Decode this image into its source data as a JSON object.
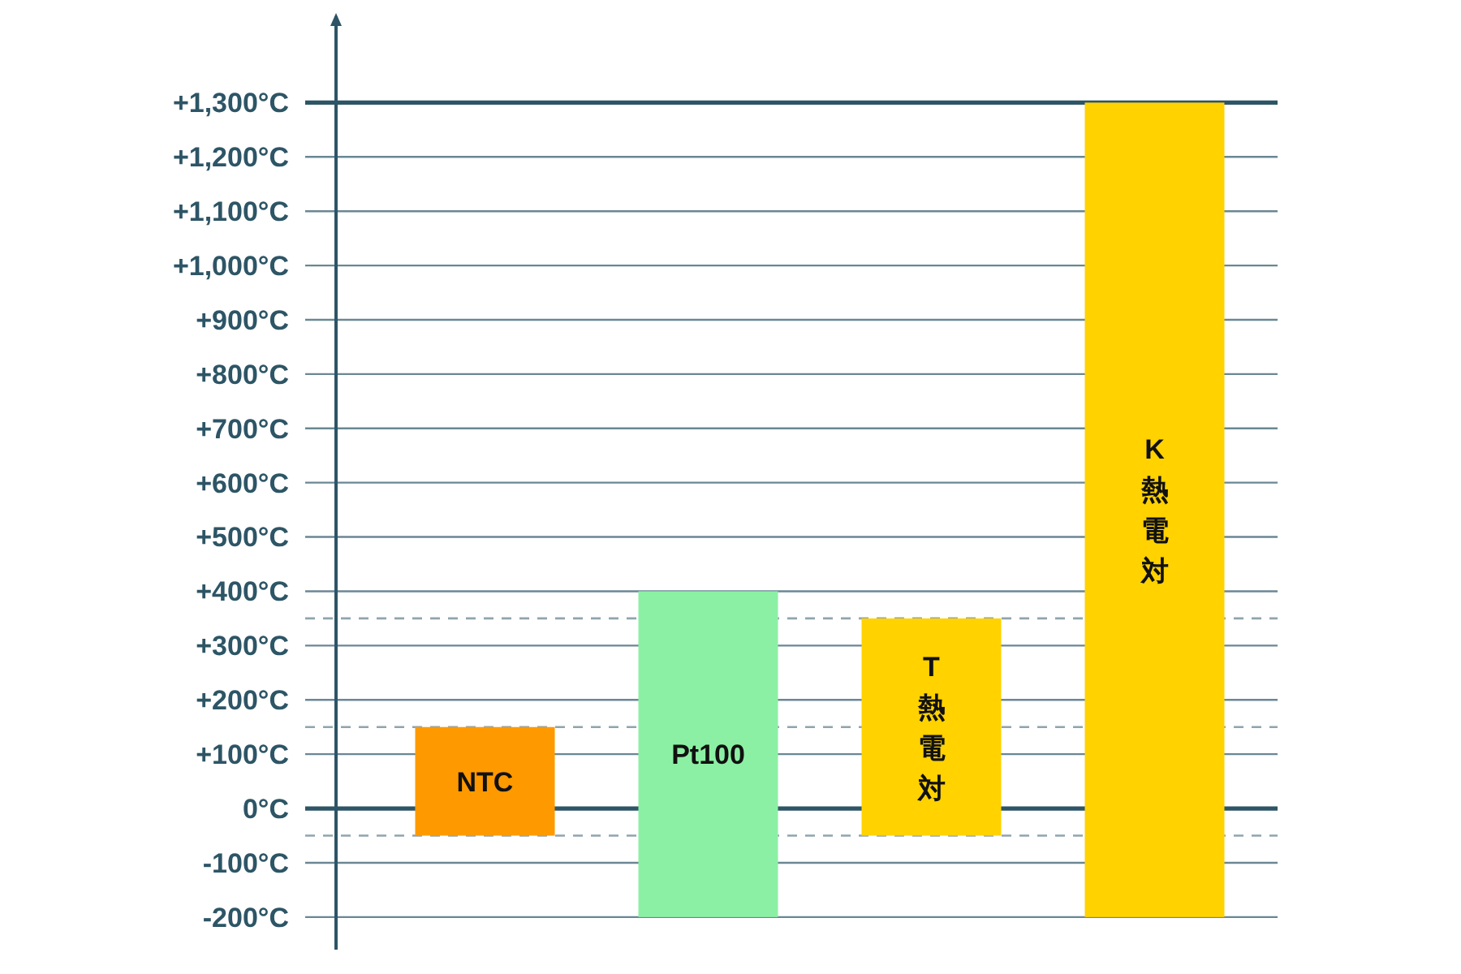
{
  "chart_data": {
    "type": "bar",
    "categories": [
      "NTC",
      "Pt100",
      "T熱電対",
      "K熱電対"
    ],
    "base": [
      -50,
      -200,
      -50,
      -200
    ],
    "values": [
      200,
      600,
      400,
      1500
    ],
    "colors": [
      "#ff9900",
      "#8cf0a4",
      "#ffd200",
      "#ffd200"
    ],
    "ylim": [
      -260,
      1465
    ],
    "yticks": [
      {
        "value": -200,
        "label": "-200°C"
      },
      {
        "value": -100,
        "label": "-100°C"
      },
      {
        "value": 0,
        "label": "0°C"
      },
      {
        "value": 100,
        "label": "+100°C"
      },
      {
        "value": 200,
        "label": "+200°C"
      },
      {
        "value": 300,
        "label": "+300°C"
      },
      {
        "value": 400,
        "label": "+400°C"
      },
      {
        "value": 500,
        "label": "+500°C"
      },
      {
        "value": 600,
        "label": "+600°C"
      },
      {
        "value": 700,
        "label": "+700°C"
      },
      {
        "value": 800,
        "label": "+800°C"
      },
      {
        "value": 900,
        "label": "+900°C"
      },
      {
        "value": 1000,
        "label": "+1,000°C"
      },
      {
        "value": 1100,
        "label": "+1,100°C"
      },
      {
        "value": 1200,
        "label": "+1,200°C"
      },
      {
        "value": 1300,
        "label": "+1,300°C"
      }
    ],
    "grid": "y",
    "ref_lines": [
      {
        "axis": "y",
        "value": 350,
        "color": "#90a4ae",
        "line_style": "dashed"
      },
      {
        "axis": "y",
        "value": 150,
        "color": "#90a4ae",
        "line_style": "dashed"
      },
      {
        "axis": "y",
        "value": -50,
        "color": "#90a4ae",
        "line_style": "dashed"
      }
    ]
  }
}
